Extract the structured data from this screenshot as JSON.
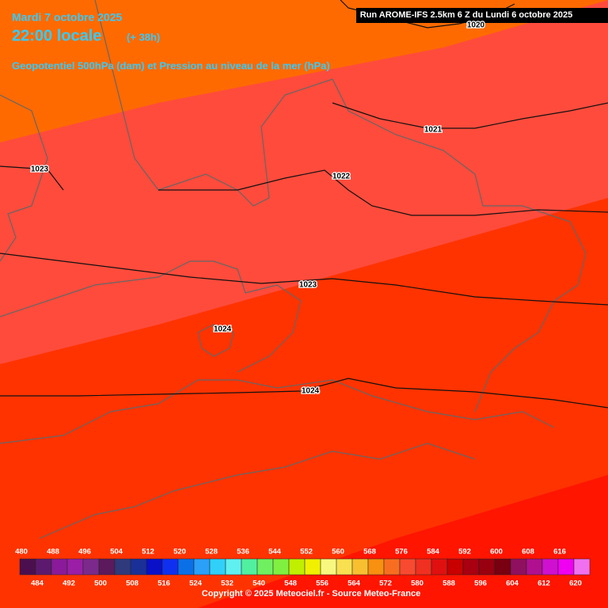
{
  "header": {
    "date": "Mardi 7 octobre 2025",
    "time": "22:00 locale",
    "lead": "(+ 38h)",
    "parameter": "Geopotentiel 500hPa (dam) et Pression au niveau de la mer (hPa)"
  },
  "run": "Run AROME-IFS 2.5km 6 Z du Lundi 6 octobre 2025",
  "isobar_labels": [
    "1020",
    "1021",
    "1023",
    "1022",
    "1023",
    "1024",
    "1024"
  ],
  "legend": {
    "ticks": [
      480,
      484,
      488,
      492,
      496,
      500,
      504,
      508,
      512,
      516,
      520,
      524,
      528,
      532,
      536,
      540,
      544,
      548,
      552,
      556,
      560,
      564,
      568,
      572,
      576,
      580,
      584,
      588,
      592,
      596,
      600,
      604,
      608,
      612,
      616,
      620
    ],
    "colors": [
      "#4b0f4f",
      "#5c1a6e",
      "#8a1a9a",
      "#9b1ea6",
      "#7b2a8c",
      "#5a1a5c",
      "#2e3a7c",
      "#1a3098",
      "#0a10c8",
      "#1030f0",
      "#0b70e8",
      "#2aa0f8",
      "#30d0f8",
      "#60f0f0",
      "#50f0a0",
      "#70f060",
      "#80f040",
      "#c0f000",
      "#f0f000",
      "#f8f880",
      "#f8e050",
      "#f8c030",
      "#f89010",
      "#f86e20",
      "#f84a30",
      "#f03020",
      "#e01010",
      "#c80000",
      "#a80010",
      "#980010",
      "#780010",
      "#901060",
      "#b01090",
      "#d010d0",
      "#f000f0",
      "#f070f0"
    ]
  },
  "copyright": "Copyright © 2025 Meteociel.fr - Source Meteo-France"
}
